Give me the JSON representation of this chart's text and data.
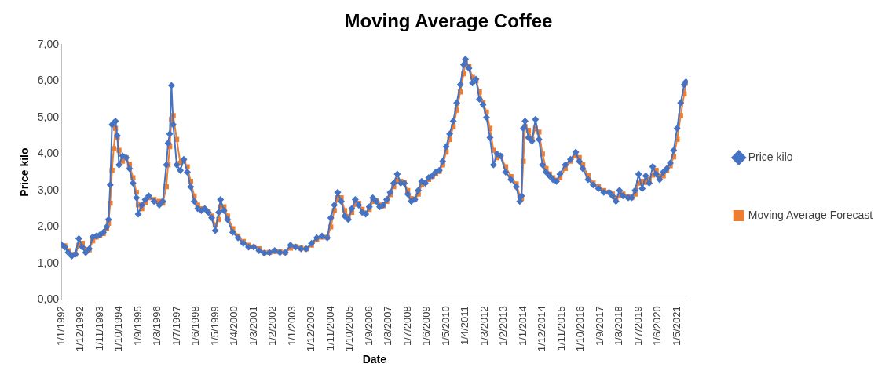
{
  "chart_data": {
    "type": "line",
    "title": "Moving Average Coffee",
    "xlabel": "Date",
    "ylabel": "Price kilo",
    "x": [
      "1992-01",
      "1992-03",
      "1992-05",
      "1992-07",
      "1992-09",
      "1992-11",
      "1993-01",
      "1993-03",
      "1993-05",
      "1993-07",
      "1993-09",
      "1993-11",
      "1994-01",
      "1994-03",
      "1994-04",
      "1994-05",
      "1994-06",
      "1994-07",
      "1994-08",
      "1994-09",
      "1994-10",
      "1994-12",
      "1995-02",
      "1995-04",
      "1995-06",
      "1995-08",
      "1995-09",
      "1995-11",
      "1996-01",
      "1996-03",
      "1996-06",
      "1996-09",
      "1996-11",
      "1997-01",
      "1997-02",
      "1997-03",
      "1997-04",
      "1997-05",
      "1997-07",
      "1997-09",
      "1997-11",
      "1998-01",
      "1998-03",
      "1998-05",
      "1998-07",
      "1998-09",
      "1998-11",
      "1999-01",
      "1999-03",
      "1999-05",
      "1999-07",
      "1999-08",
      "1999-10",
      "1999-12",
      "2000-03",
      "2000-06",
      "2000-09",
      "2000-12",
      "2001-03",
      "2001-06",
      "2001-09",
      "2001-12",
      "2002-03",
      "2002-06",
      "2002-09",
      "2002-12",
      "2003-03",
      "2003-06",
      "2003-09",
      "2003-12",
      "2004-03",
      "2004-06",
      "2004-09",
      "2004-11",
      "2005-01",
      "2005-03",
      "2005-05",
      "2005-07",
      "2005-09",
      "2005-11",
      "2006-01",
      "2006-03",
      "2006-05",
      "2006-07",
      "2006-09",
      "2006-11",
      "2007-01",
      "2007-03",
      "2007-05",
      "2007-07",
      "2007-09",
      "2007-11",
      "2008-01",
      "2008-03",
      "2008-05",
      "2008-07",
      "2008-09",
      "2008-11",
      "2009-01",
      "2009-03",
      "2009-05",
      "2009-07",
      "2009-09",
      "2009-11",
      "2010-01",
      "2010-03",
      "2010-05",
      "2010-07",
      "2010-09",
      "2010-11",
      "2011-01",
      "2011-03",
      "2011-04",
      "2011-06",
      "2011-08",
      "2011-10",
      "2011-12",
      "2012-02",
      "2012-04",
      "2012-06",
      "2012-08",
      "2012-10",
      "2012-12",
      "2013-03",
      "2013-06",
      "2013-09",
      "2013-11",
      "2013-12",
      "2014-01",
      "2014-02",
      "2014-04",
      "2014-06",
      "2014-08",
      "2014-10",
      "2014-12",
      "2015-02",
      "2015-04",
      "2015-06",
      "2015-08",
      "2015-10",
      "2016-01",
      "2016-04",
      "2016-07",
      "2016-09",
      "2016-11",
      "2017-02",
      "2017-05",
      "2017-08",
      "2017-11",
      "2018-02",
      "2018-04",
      "2018-06",
      "2018-08",
      "2018-10",
      "2019-01",
      "2019-03",
      "2019-05",
      "2019-07",
      "2019-09",
      "2019-11",
      "2020-01",
      "2020-03",
      "2020-05",
      "2020-07",
      "2020-09",
      "2020-11",
      "2021-01",
      "2021-03",
      "2021-05",
      "2021-07",
      "2021-09",
      "2021-10"
    ],
    "xlim": [
      "1992-01",
      "2021-11"
    ],
    "xticks": [
      {
        "value": "1992-01-01",
        "label": "1/1/1992"
      },
      {
        "value": "1992-12-01",
        "label": "1/12/1992"
      },
      {
        "value": "1993-11-01",
        "label": "1/11/1993"
      },
      {
        "value": "1994-10-01",
        "label": "1/10/1994"
      },
      {
        "value": "1995-09-01",
        "label": "1/9/1995"
      },
      {
        "value": "1996-08-01",
        "label": "1/8/1996"
      },
      {
        "value": "1997-07-01",
        "label": "1/7/1997"
      },
      {
        "value": "1998-06-01",
        "label": "1/6/1998"
      },
      {
        "value": "1999-05-01",
        "label": "1/5/1999"
      },
      {
        "value": "2000-04-01",
        "label": "1/4/2000"
      },
      {
        "value": "2001-03-01",
        "label": "1/3/2001"
      },
      {
        "value": "2002-02-01",
        "label": "1/2/2002"
      },
      {
        "value": "2003-01-01",
        "label": "1/1/2003"
      },
      {
        "value": "2003-12-01",
        "label": "1/12/2003"
      },
      {
        "value": "2004-11-01",
        "label": "1/11/2004"
      },
      {
        "value": "2005-10-01",
        "label": "1/10/2005"
      },
      {
        "value": "2006-09-01",
        "label": "1/9/2006"
      },
      {
        "value": "2007-08-01",
        "label": "1/8/2007"
      },
      {
        "value": "2008-07-01",
        "label": "1/7/2008"
      },
      {
        "value": "2009-06-01",
        "label": "1/6/2009"
      },
      {
        "value": "2010-05-01",
        "label": "1/5/2010"
      },
      {
        "value": "2011-04-01",
        "label": "1/4/2011"
      },
      {
        "value": "2012-03-01",
        "label": "1/3/2012"
      },
      {
        "value": "2013-02-01",
        "label": "1/2/2013"
      },
      {
        "value": "2014-01-01",
        "label": "1/1/2014"
      },
      {
        "value": "2014-12-01",
        "label": "1/12/2014"
      },
      {
        "value": "2015-11-01",
        "label": "1/11/2015"
      },
      {
        "value": "2016-10-01",
        "label": "1/10/2016"
      },
      {
        "value": "2017-09-01",
        "label": "1/9/2017"
      },
      {
        "value": "2018-08-01",
        "label": "1/8/2018"
      },
      {
        "value": "2019-07-01",
        "label": "1/7/2019"
      },
      {
        "value": "2020-06-01",
        "label": "1/6/2020"
      },
      {
        "value": "2021-05-01",
        "label": "1/5/2021"
      }
    ],
    "ylim": [
      0,
      7
    ],
    "yticks": [
      {
        "value": 0,
        "label": "0,00"
      },
      {
        "value": 1,
        "label": "1,00"
      },
      {
        "value": 2,
        "label": "2,00"
      },
      {
        "value": 3,
        "label": "3,00"
      },
      {
        "value": 4,
        "label": "4,00"
      },
      {
        "value": 5,
        "label": "5,00"
      },
      {
        "value": 6,
        "label": "6,00"
      },
      {
        "value": 7,
        "label": "7,00"
      }
    ],
    "grid": false,
    "legend": "right",
    "line_style": "solid",
    "series": [
      {
        "name": "Price kilo",
        "color": "#4472c4",
        "marker": "diamond",
        "values": [
          1.52,
          1.45,
          1.3,
          1.2,
          1.25,
          1.68,
          1.45,
          1.3,
          1.4,
          1.72,
          1.75,
          1.78,
          1.85,
          2.0,
          2.2,
          3.15,
          4.8,
          4.85,
          4.9,
          4.5,
          3.7,
          3.95,
          3.9,
          3.6,
          3.2,
          2.8,
          2.35,
          2.6,
          2.75,
          2.85,
          2.7,
          2.6,
          2.7,
          3.7,
          4.3,
          4.55,
          5.88,
          4.8,
          3.7,
          3.55,
          3.85,
          3.5,
          3.1,
          2.7,
          2.5,
          2.45,
          2.5,
          2.4,
          2.25,
          1.9,
          2.4,
          2.75,
          2.45,
          2.2,
          1.85,
          1.7,
          1.55,
          1.45,
          1.45,
          1.35,
          1.28,
          1.3,
          1.35,
          1.3,
          1.3,
          1.5,
          1.45,
          1.4,
          1.4,
          1.55,
          1.7,
          1.75,
          1.7,
          2.25,
          2.6,
          2.95,
          2.7,
          2.3,
          2.2,
          2.5,
          2.75,
          2.6,
          2.4,
          2.35,
          2.55,
          2.8,
          2.7,
          2.55,
          2.6,
          2.75,
          2.95,
          3.2,
          3.45,
          3.2,
          3.2,
          2.9,
          2.7,
          2.75,
          3.0,
          3.25,
          3.2,
          3.35,
          3.4,
          3.5,
          3.55,
          3.8,
          4.2,
          4.55,
          4.9,
          5.4,
          5.9,
          6.45,
          6.6,
          6.35,
          5.95,
          6.05,
          5.5,
          5.35,
          5.0,
          4.45,
          3.7,
          4.0,
          3.95,
          3.5,
          3.3,
          3.1,
          2.7,
          2.85,
          4.7,
          4.9,
          4.45,
          4.35,
          4.95,
          4.4,
          3.7,
          3.5,
          3.4,
          3.3,
          3.25,
          3.45,
          3.7,
          3.85,
          4.05,
          3.8,
          3.6,
          3.3,
          3.15,
          3.05,
          2.95,
          2.95,
          2.85,
          2.7,
          3.0,
          2.85,
          2.8,
          2.8,
          3.0,
          3.45,
          3.05,
          3.4,
          3.2,
          3.65,
          3.45,
          3.3,
          3.5,
          3.6,
          3.75,
          4.1,
          4.7,
          5.4,
          5.9,
          5.98
        ]
      },
      {
        "name": "Moving Average Forecast",
        "color": "#ed7d31",
        "marker": "square",
        "values": [
          null,
          1.48,
          1.35,
          1.24,
          1.25,
          1.5,
          1.55,
          1.38,
          1.37,
          1.62,
          1.72,
          1.76,
          1.82,
          1.95,
          2.1,
          2.65,
          3.55,
          4.15,
          4.7,
          4.45,
          4.1,
          3.8,
          3.9,
          3.7,
          3.35,
          2.95,
          2.6,
          2.5,
          2.68,
          2.8,
          2.75,
          2.7,
          2.65,
          3.1,
          3.7,
          4.2,
          4.95,
          5.05,
          4.4,
          3.75,
          3.8,
          3.65,
          3.25,
          2.85,
          2.6,
          2.5,
          2.48,
          2.42,
          2.3,
          2.05,
          2.2,
          2.55,
          2.55,
          2.3,
          1.95,
          1.75,
          1.6,
          1.5,
          1.45,
          1.4,
          1.3,
          1.3,
          1.33,
          1.32,
          1.3,
          1.42,
          1.46,
          1.42,
          1.4,
          1.5,
          1.65,
          1.72,
          1.72,
          2.0,
          2.45,
          2.8,
          2.8,
          2.45,
          2.28,
          2.4,
          2.62,
          2.65,
          2.48,
          2.38,
          2.48,
          2.7,
          2.72,
          2.6,
          2.58,
          2.7,
          2.88,
          3.1,
          3.28,
          3.25,
          3.22,
          3.0,
          2.78,
          2.75,
          2.9,
          3.15,
          3.22,
          3.3,
          3.38,
          3.45,
          3.52,
          3.7,
          4.05,
          4.4,
          4.75,
          5.2,
          5.7,
          6.2,
          6.5,
          6.4,
          6.1,
          6.0,
          5.7,
          5.4,
          5.15,
          4.7,
          4.1,
          3.9,
          3.95,
          3.65,
          3.38,
          3.18,
          2.85,
          2.78,
          3.8,
          4.75,
          4.65,
          4.4,
          4.7,
          4.6,
          4.0,
          3.6,
          3.45,
          3.35,
          3.28,
          3.35,
          3.6,
          3.8,
          3.95,
          3.9,
          3.7,
          3.4,
          3.2,
          3.1,
          3.0,
          2.95,
          2.9,
          2.78,
          2.85,
          2.9,
          2.82,
          2.8,
          2.9,
          3.2,
          3.25,
          3.22,
          3.3,
          3.42,
          3.55,
          3.38,
          3.4,
          3.55,
          3.68,
          3.92,
          4.4,
          5.05,
          5.65,
          5.94
        ]
      }
    ]
  }
}
